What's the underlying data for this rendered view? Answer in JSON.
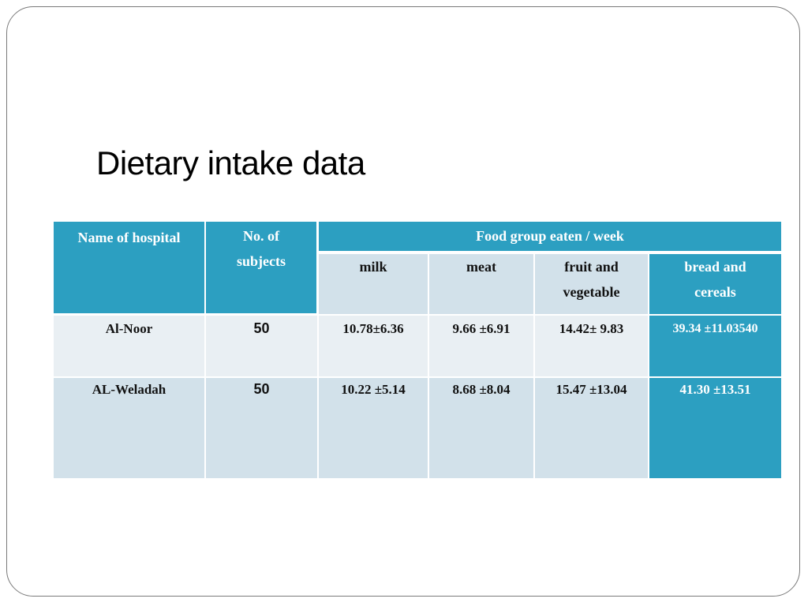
{
  "slide": {
    "title": "Dietary intake data"
  },
  "table": {
    "headers": {
      "hospital": "Name of hospital",
      "subjects": "No. of subjects",
      "food_group": "Food group eaten / week",
      "milk": "milk",
      "meat": "meat",
      "fruit": "fruit and vegetable",
      "bread": "bread and cereals"
    },
    "rows": [
      {
        "hospital": "Al-Noor",
        "subjects": "50",
        "milk": "10.78±6.36",
        "meat": "9.66 ±6.91",
        "fruit": "14.42± 9.83",
        "bread": "39.34 ±11.03540"
      },
      {
        "hospital": "AL-Weladah",
        "subjects": "50",
        "milk": "10.22 ±5.14",
        "meat": "8.68 ±8.04",
        "fruit": "15.47 ±13.04",
        "bread": "41.30 ±13.51"
      }
    ]
  },
  "colors": {
    "header": "#2c9fc1",
    "light_row": "#e9eff3",
    "mid_row": "#d2e1ea"
  }
}
